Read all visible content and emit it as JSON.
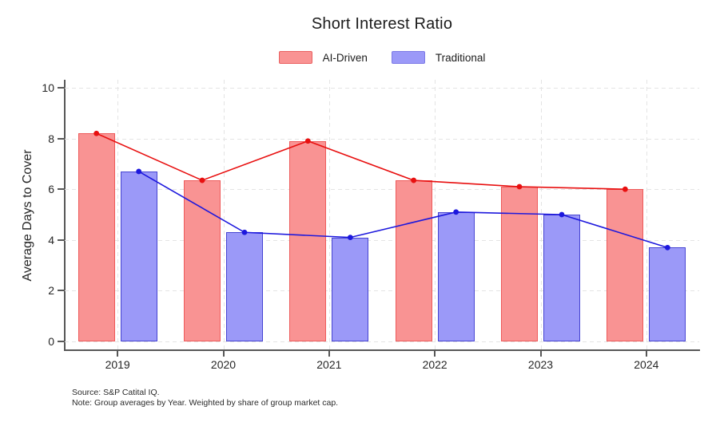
{
  "chart_data": {
    "type": "bar",
    "overlay": "line-with-markers-at-bar-tops",
    "title": "Short Interest Ratio",
    "ylabel": "Average Days to Cover",
    "xlabel": "",
    "categories": [
      "2019",
      "2020",
      "2021",
      "2022",
      "2023",
      "2024"
    ],
    "series": [
      {
        "name": "AI-Driven",
        "values": [
          8.2,
          6.35,
          7.9,
          6.35,
          6.1,
          6.0
        ],
        "bar_fill": "#f99393",
        "bar_border": "#ee5a5a",
        "line_color": "#e81010",
        "legend_border": "#ea6060"
      },
      {
        "name": "Traditional",
        "values": [
          6.7,
          4.3,
          4.1,
          5.1,
          5.0,
          3.7
        ],
        "bar_fill": "#9b99f8",
        "bar_border": "#4644d2",
        "line_color": "#1d18dd",
        "legend_border": "#7c7ae6"
      }
    ],
    "ylim": [
      0,
      10
    ],
    "yticks": [
      0,
      2,
      4,
      6,
      8,
      10
    ],
    "grid": true,
    "legend_position": "top-center",
    "source": "Source: S&P Catital IQ.",
    "note": "Note: Group averages by Year. Weighted by share of group market cap.",
    "colors": {
      "grid": "#e4e4e4",
      "axis": "#575757",
      "text": "#262626"
    }
  }
}
